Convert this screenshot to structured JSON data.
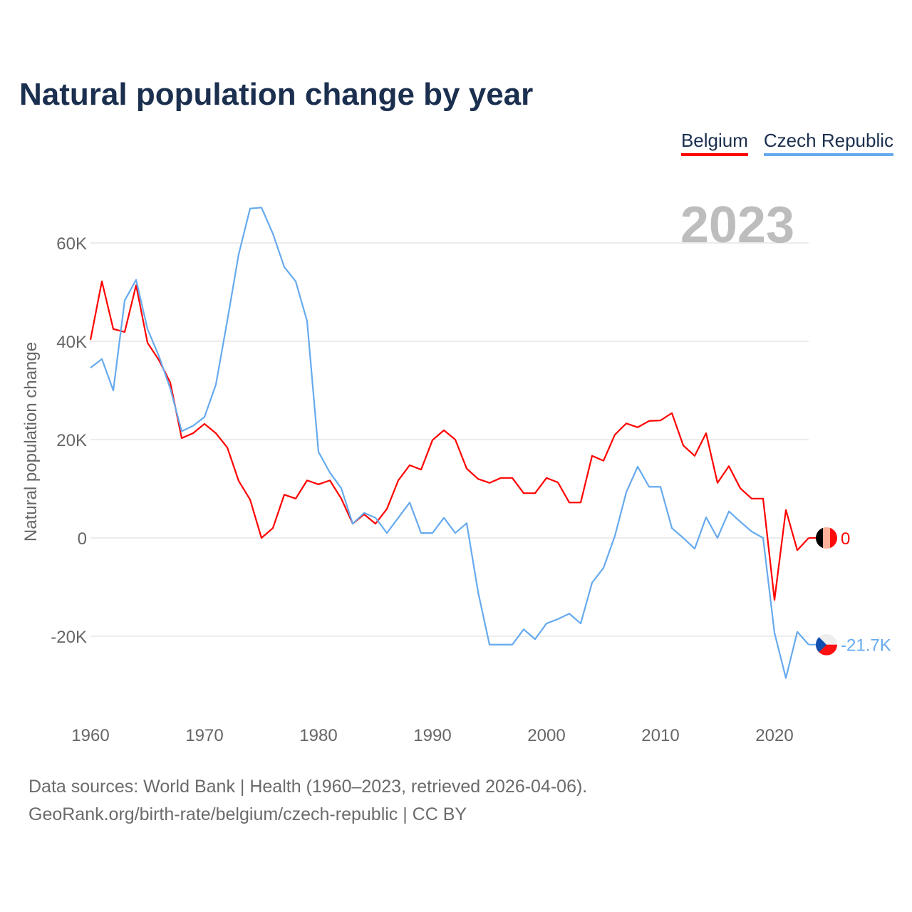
{
  "chart_data": {
    "type": "line",
    "title": "Natural population change by year",
    "xlabel": "",
    "ylabel": "Natural population change",
    "xlim": [
      1960,
      2023
    ],
    "ylim": [
      -30000,
      70000
    ],
    "grid": true,
    "legend_position": "top-right",
    "current_year_label": "2023",
    "x_ticks": [
      "1960",
      "1970",
      "1980",
      "1990",
      "2000",
      "2010",
      "2020"
    ],
    "y_ticks": [
      {
        "value": -20000,
        "label": "-20K"
      },
      {
        "value": 0,
        "label": "0"
      },
      {
        "value": 20000,
        "label": "20K"
      },
      {
        "value": 40000,
        "label": "40K"
      },
      {
        "value": 60000,
        "label": "60K"
      }
    ],
    "x": [
      1960,
      1961,
      1962,
      1963,
      1964,
      1965,
      1966,
      1967,
      1968,
      1969,
      1970,
      1971,
      1972,
      1973,
      1974,
      1975,
      1976,
      1977,
      1978,
      1979,
      1980,
      1981,
      1982,
      1983,
      1984,
      1985,
      1986,
      1987,
      1988,
      1989,
      1990,
      1991,
      1992,
      1993,
      1994,
      1995,
      1996,
      1997,
      1998,
      1999,
      2000,
      2001,
      2002,
      2003,
      2004,
      2005,
      2006,
      2007,
      2008,
      2009,
      2010,
      2011,
      2012,
      2013,
      2014,
      2015,
      2016,
      2017,
      2018,
      2019,
      2020,
      2021,
      2022,
      2023
    ],
    "series": [
      {
        "name": "Belgium",
        "color": "#ff0000",
        "end_label": "0",
        "values": [
          40300,
          52200,
          42500,
          41900,
          51400,
          39700,
          36200,
          31600,
          20300,
          21300,
          23200,
          21300,
          18400,
          11600,
          7800,
          0,
          2000,
          8800,
          8000,
          11700,
          10900,
          11700,
          8000,
          2900,
          4800,
          2900,
          5900,
          11700,
          14800,
          13900,
          19900,
          21900,
          20000,
          14100,
          12000,
          11200,
          12200,
          12200,
          9100,
          9100,
          12200,
          11300,
          7200,
          7200,
          16700,
          15700,
          21000,
          23300,
          22500,
          23800,
          23900,
          25400,
          18800,
          16700,
          21300,
          11200,
          14600,
          10100,
          8000,
          8000,
          -12600,
          5700,
          -2500,
          0
        ]
      },
      {
        "name": "Czech Republic",
        "color": "#66aaee",
        "end_label": "-21.7K",
        "values": [
          34600,
          36400,
          30000,
          48300,
          52500,
          42500,
          37000,
          30400,
          21700,
          22800,
          24600,
          31200,
          44200,
          57700,
          67000,
          67200,
          61900,
          55100,
          52200,
          44100,
          17500,
          13300,
          10100,
          2900,
          5100,
          4100,
          1000,
          4100,
          7200,
          1000,
          1000,
          4100,
          1000,
          3000,
          -11000,
          -21700,
          -21700,
          -21700,
          -18600,
          -20600,
          -17400,
          -16500,
          -15400,
          -17400,
          -9100,
          -6100,
          400,
          9300,
          14500,
          10400,
          10400,
          2000,
          0,
          -2200,
          4200,
          0,
          5400,
          3300,
          1300,
          0,
          -19300,
          -28500,
          -19100,
          -21700
        ]
      }
    ]
  },
  "footer": {
    "line1": "Data sources: World Bank | Health (1960–2023, retrieved 2026-04-06).",
    "line2": "GeoRank.org/birth-rate/belgium/czech-republic | CC BY"
  }
}
